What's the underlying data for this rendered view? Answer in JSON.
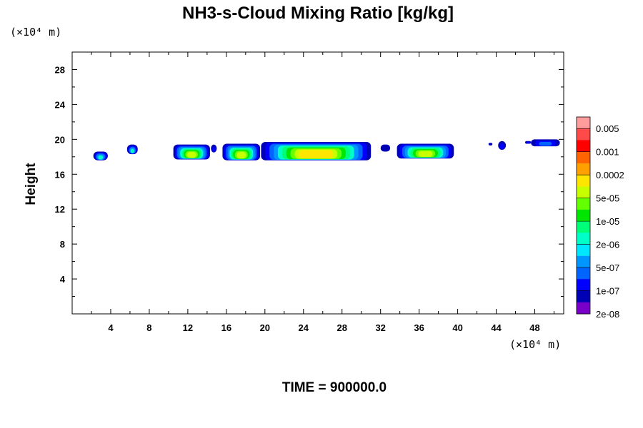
{
  "chart_data": {
    "type": "heatmap",
    "title": "NH3-s-Cloud Mixing Ratio [kg/kg]",
    "ylabel": "Height",
    "x_unit": "(×10⁴ m)",
    "y_unit": "(×10⁴ m)",
    "time_label": "TIME = 900000.0",
    "xlim": [
      0,
      51
    ],
    "ylim": [
      0,
      30
    ],
    "x_ticks": [
      4,
      8,
      12,
      16,
      20,
      24,
      28,
      32,
      36,
      40,
      44,
      48
    ],
    "y_ticks": [
      4,
      8,
      12,
      16,
      20,
      24,
      28
    ],
    "colorbar": {
      "labels": [
        "0.005",
        "0.001",
        "0.0002",
        "5e-05",
        "1e-05",
        "2e-06",
        "5e-07",
        "1e-07",
        "2e-08"
      ],
      "colors_top_to_bottom": [
        "#ff9c9c",
        "#ff4a4a",
        "#ff0000",
        "#ff6400",
        "#ffa000",
        "#ffe600",
        "#c8ff00",
        "#64ff00",
        "#00e600",
        "#00ff78",
        "#00ffc8",
        "#00e6ff",
        "#0096ff",
        "#0064ff",
        "#0000ff",
        "#0000b4",
        "#7800c8"
      ]
    },
    "cloud_blobs": [
      {
        "x0": 2.2,
        "x1": 3.7,
        "y0": 17.6,
        "y1": 18.6,
        "level": 5
      },
      {
        "x0": 5.7,
        "x1": 6.8,
        "y0": 18.3,
        "y1": 19.4,
        "level": 5
      },
      {
        "x0": 10.5,
        "x1": 14.3,
        "y0": 17.7,
        "y1": 19.4,
        "level": 9
      },
      {
        "x0": 14.4,
        "x1": 15.0,
        "y0": 18.5,
        "y1": 19.4,
        "level": 2
      },
      {
        "x0": 15.6,
        "x1": 19.5,
        "y0": 17.6,
        "y1": 19.5,
        "level": 9
      },
      {
        "x0": 19.6,
        "x1": 31.0,
        "y0": 17.6,
        "y1": 19.7,
        "level": 11
      },
      {
        "x0": 32.0,
        "x1": 33.0,
        "y0": 18.6,
        "y1": 19.4,
        "level": 1
      },
      {
        "x0": 33.7,
        "x1": 39.6,
        "y0": 17.8,
        "y1": 19.5,
        "level": 9
      },
      {
        "x0": 43.2,
        "x1": 43.6,
        "y0": 19.3,
        "y1": 19.6,
        "level": 1
      },
      {
        "x0": 44.2,
        "x1": 45.0,
        "y0": 18.8,
        "y1": 19.8,
        "level": 2
      },
      {
        "x0": 47.0,
        "x1": 47.6,
        "y0": 19.5,
        "y1": 19.8,
        "level": 2
      },
      {
        "x0": 47.6,
        "x1": 50.6,
        "y0": 19.2,
        "y1": 20.0,
        "level": 3
      }
    ]
  }
}
